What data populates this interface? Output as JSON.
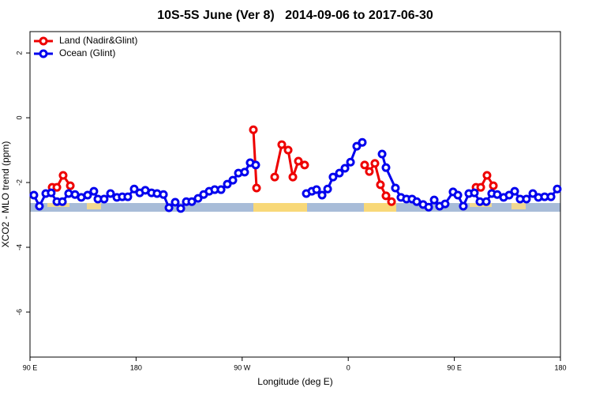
{
  "chart_data": {
    "type": "line",
    "title": "10S-5S June (Ver 8)   2014-09-06 to 2017-06-30",
    "x_label": "Longitude (deg E)",
    "y_label": "XCO2 - MLO trend (ppm)",
    "xlim": [
      90,
      540
    ],
    "ylim": [
      -7.39,
      2.66
    ],
    "xticks": [
      {
        "value": 90,
        "label": "90 E"
      },
      180,
      {
        "value": 270,
        "label": "90 W"
      },
      {
        "value": 360,
        "label": "0"
      },
      {
        "value": 450,
        "label": "90 E"
      },
      {
        "value": 540,
        "label": "180"
      }
    ],
    "yticks": [
      2,
      0,
      -2,
      -4,
      -6
    ],
    "legend": "top-left",
    "series": [
      {
        "name": "Land (Nadir&Glint)",
        "color": "#ee0000",
        "x": [
          108.8,
          112.8,
          118.1,
          124.2,
          null,
          279.5,
          282.2,
          null,
          297.6,
          303.6,
          309,
          313,
          317.7,
          323,
          null,
          373.9,
          377.9,
          382.6,
          387.3,
          392,
          396.7,
          null,
          468.4,
          472.4,
          477.7,
          483.1
        ],
        "values": [
          -2.15,
          -2.15,
          -1.78,
          -2.1,
          null,
          -0.37,
          -2.17,
          null,
          -1.83,
          -0.83,
          -1.0,
          -1.83,
          -1.34,
          -1.46,
          null,
          -1.46,
          -1.66,
          -1.41,
          -2.07,
          -2.41,
          -2.59,
          null,
          -2.15,
          -2.15,
          -1.78,
          -2.1
        ]
      },
      {
        "name": "Ocean (Glint)",
        "color": "#0000ee",
        "x": [
          93.3,
          98,
          103.4,
          108,
          112.8,
          117.5,
          122.8,
          128.2,
          133.5,
          138.9,
          144.2,
          147.6,
          152.9,
          158.3,
          163.7,
          168.3,
          173,
          178.4,
          183.1,
          187.8,
          193.1,
          197.8,
          203.2,
          207.9,
          213.2,
          217.9,
          222.6,
          227.3,
          232.6,
          237.3,
          242,
          246.7,
          252.1,
          257.4,
          262.1,
          266.8,
          272.1,
          276.8,
          281.5,
          null,
          324.4,
          329.1,
          333.1,
          337.8,
          342.5,
          347.1,
          352.5,
          357.2,
          361.9,
          367.2,
          371.9,
          null,
          388.7,
          392,
          400,
          404.7,
          409.4,
          414.1,
          418.1,
          423.5,
          428.2,
          432.9,
          437.5,
          442.2,
          448.9,
          453,
          457.6,
          462.3,
          467,
          471.7,
          477.1,
          481.7,
          486.4,
          491.8,
          496.5,
          501.2,
          505.8,
          511.2,
          516.6,
          521.3,
          526.6,
          532,
          537.3
        ],
        "values": [
          -2.39,
          -2.73,
          -2.34,
          -2.32,
          -2.59,
          -2.59,
          -2.34,
          -2.37,
          -2.46,
          -2.39,
          -2.27,
          -2.51,
          -2.51,
          -2.34,
          -2.46,
          -2.44,
          -2.44,
          -2.2,
          -2.32,
          -2.24,
          -2.32,
          -2.34,
          -2.37,
          -2.78,
          -2.61,
          -2.8,
          -2.59,
          -2.59,
          -2.49,
          -2.37,
          -2.27,
          -2.22,
          -2.22,
          -2.05,
          -1.93,
          -1.71,
          -1.68,
          -1.39,
          -1.46,
          null,
          -2.34,
          -2.27,
          -2.22,
          -2.39,
          -2.2,
          -1.83,
          -1.71,
          -1.56,
          -1.37,
          -0.88,
          -0.76,
          null,
          -1.12,
          -1.54,
          -2.17,
          -2.46,
          -2.51,
          -2.51,
          -2.59,
          -2.68,
          -2.76,
          -2.54,
          -2.73,
          -2.66,
          -2.29,
          -2.39,
          -2.73,
          -2.34,
          -2.32,
          -2.59,
          -2.59,
          -2.34,
          -2.37,
          -2.46,
          -2.39,
          -2.27,
          -2.51,
          -2.51,
          -2.34,
          -2.46,
          -2.44,
          -2.44,
          -2.2
        ]
      }
    ]
  }
}
